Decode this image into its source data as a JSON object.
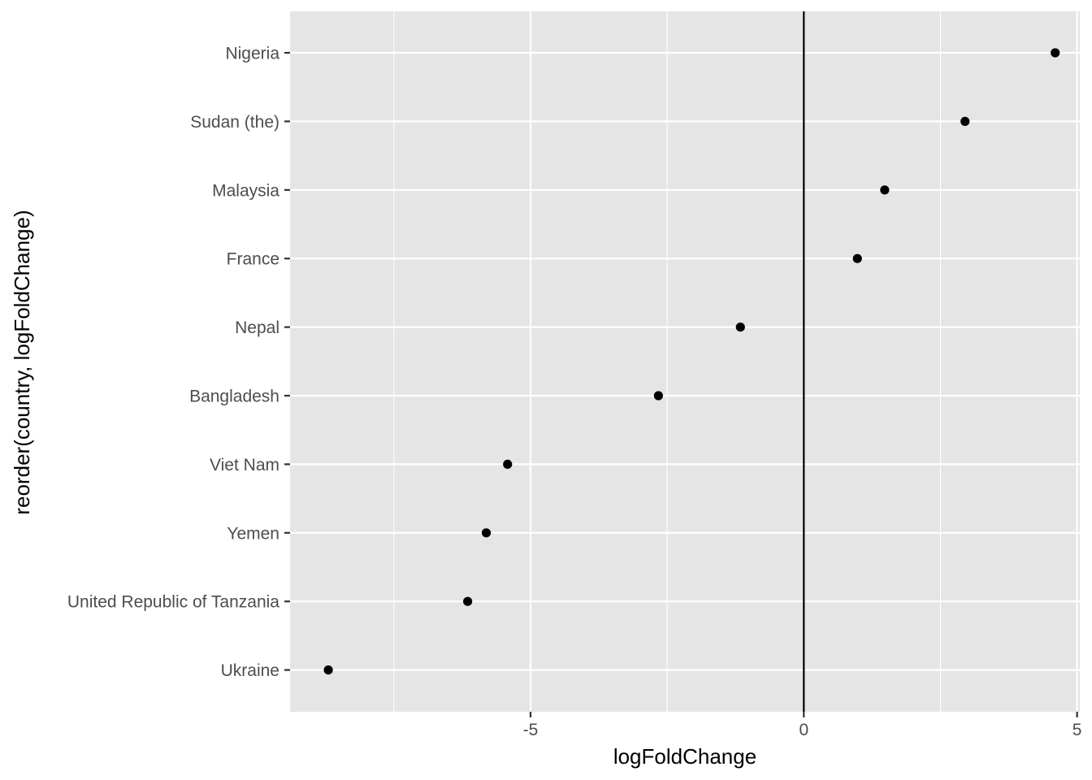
{
  "chart_data": {
    "type": "scatter",
    "xlabel": "logFoldChange",
    "ylabel": "reorder(country, logFoldChange)",
    "xlim": [
      -9.4,
      5.05
    ],
    "x_ticks": [
      {
        "value": -5,
        "label": "-5"
      },
      {
        "value": 0,
        "label": "0"
      },
      {
        "value": 5,
        "label": "5"
      }
    ],
    "x_minor_gridlines": [
      -7.5,
      -2.5,
      2.5
    ],
    "reference_line": {
      "x": 0
    },
    "grid": true,
    "legend": "none",
    "colors": {
      "panel": "#e5e5e5",
      "grid": "#ffffff",
      "point": "#000000",
      "tick_text": "#4d4d4d",
      "tick_mark": "#333333"
    },
    "categories": [
      "Nigeria",
      "Sudan (the)",
      "Malaysia",
      "France",
      "Nepal",
      "Bangladesh",
      "Viet Nam",
      "Yemen",
      "United Republic of Tanzania",
      "Ukraine"
    ],
    "points": [
      {
        "country": "Nigeria",
        "logFoldChange": 4.6
      },
      {
        "country": "Sudan (the)",
        "logFoldChange": 2.95
      },
      {
        "country": "Malaysia",
        "logFoldChange": 1.48
      },
      {
        "country": "France",
        "logFoldChange": 0.98
      },
      {
        "country": "Nepal",
        "logFoldChange": -1.16
      },
      {
        "country": "Bangladesh",
        "logFoldChange": -2.66
      },
      {
        "country": "Viet Nam",
        "logFoldChange": -5.42
      },
      {
        "country": "Yemen",
        "logFoldChange": -5.81
      },
      {
        "country": "United Republic of Tanzania",
        "logFoldChange": -6.15
      },
      {
        "country": "Ukraine",
        "logFoldChange": -8.7
      }
    ]
  }
}
